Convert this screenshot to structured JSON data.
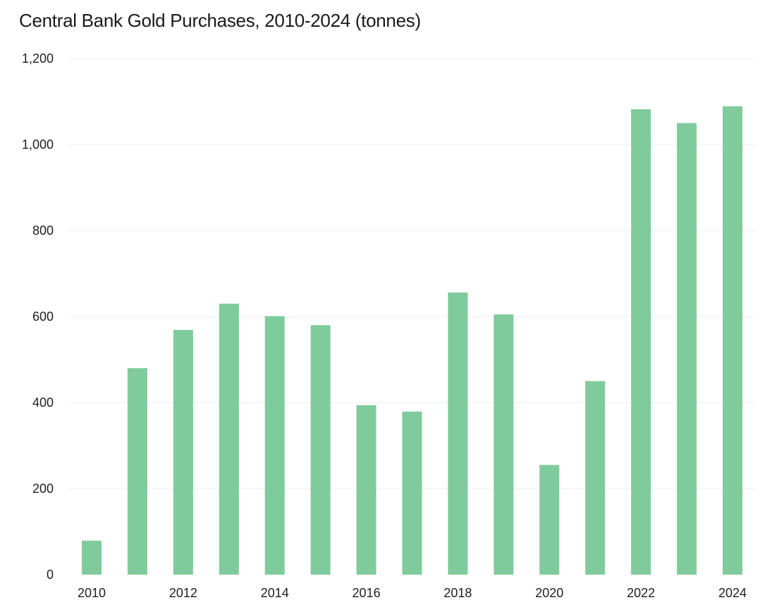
{
  "chart_data": {
    "type": "bar",
    "title": "Central Bank Gold Purchases, 2010-2024 (tonnes)",
    "xlabel": "",
    "ylabel": "",
    "categories": [
      "2010",
      "2011",
      "2012",
      "2013",
      "2014",
      "2015",
      "2016",
      "2017",
      "2018",
      "2019",
      "2020",
      "2021",
      "2022",
      "2023",
      "2024"
    ],
    "values": [
      79,
      480,
      569,
      630,
      601,
      580,
      394,
      379,
      656,
      605,
      255,
      450,
      1082,
      1050,
      1089
    ],
    "ylim": [
      0,
      1200
    ],
    "y_ticks": [
      0,
      200,
      400,
      600,
      800,
      1000,
      1200
    ],
    "y_tick_labels": [
      "0",
      "200",
      "400",
      "600",
      "800",
      "1,000",
      "1,200"
    ],
    "x_tick_labels": [
      "2010",
      "2012",
      "2014",
      "2016",
      "2018",
      "2020",
      "2022",
      "2024"
    ],
    "bar_color": "#7fcb9b",
    "grid": true,
    "grid_color": "#ececec"
  }
}
